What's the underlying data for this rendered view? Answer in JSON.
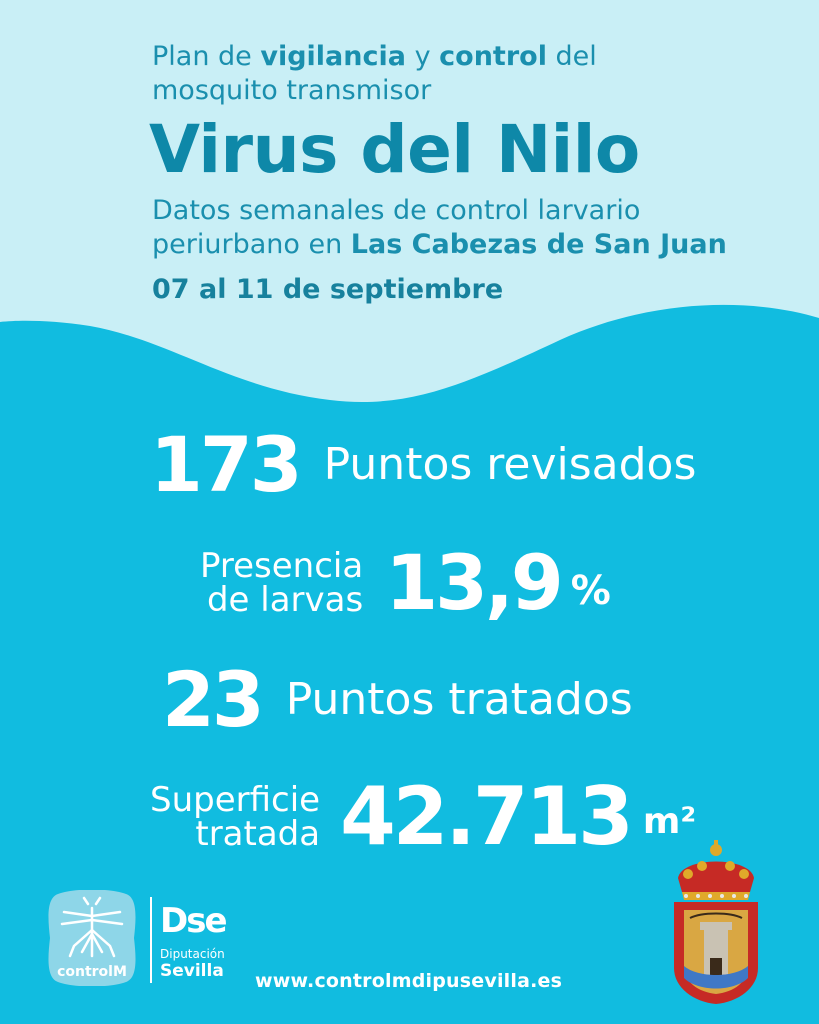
{
  "header": {
    "intro_1": "Plan de ",
    "intro_bold_1": "vigilancia",
    "intro_2": " y ",
    "intro_bold_2": "control",
    "intro_3": " del",
    "intro_line2": "mosquito transmisor",
    "title": "Virus del Nilo",
    "subtitle_line1": "Datos semanales de control larvario",
    "subtitle_line2_a": "periurbano en ",
    "subtitle_line2_bold": "Las Cabezas de San Juan",
    "dates": "07 al 11 de septiembre"
  },
  "stats": {
    "points_reviewed_value": "173",
    "points_reviewed_label": "Puntos revisados",
    "larvae_label_1": "Presencia",
    "larvae_label_2": "de larvas",
    "larvae_value": "13,9",
    "larvae_unit": "%",
    "points_treated_value": "23",
    "points_treated_label": "Puntos tratados",
    "surface_label_1": "Superficie",
    "surface_label_2": "tratada",
    "surface_value": "42.713",
    "surface_unit": "m²"
  },
  "footer": {
    "controlm_logo_text": "controlM",
    "dse_logo_text": "Dse",
    "dse_caption_1": "Diputación",
    "dse_caption_2": "Sevilla",
    "url": "www.controlmdipusevilla.es"
  },
  "colors": {
    "background": "#11bce0",
    "top_background": "#c9eff6",
    "title": "#0e88a8",
    "text_white": "#ffffff"
  }
}
